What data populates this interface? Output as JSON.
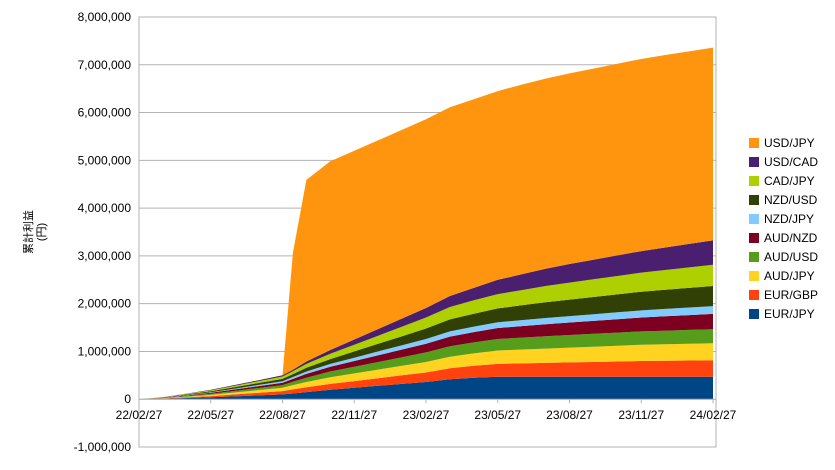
{
  "chart_data": {
    "type": "area",
    "stacked": true,
    "ylabel_lines": [
      "累計利益",
      "(円)"
    ],
    "ylim": [
      -1000000,
      8000000
    ],
    "yticks": [
      -1000000,
      0,
      1000000,
      2000000,
      3000000,
      4000000,
      5000000,
      6000000,
      7000000,
      8000000
    ],
    "ytick_labels": [
      "-1,000,000",
      "0",
      "1,000,000",
      "2,000,000",
      "3,000,000",
      "4,000,000",
      "5,000,000",
      "6,000,000",
      "7,000,000",
      "8,000,000"
    ],
    "xtick_labels": [
      "22/02/27",
      "22/05/27",
      "22/08/27",
      "22/11/27",
      "23/02/27",
      "23/05/27",
      "23/08/27",
      "23/11/27",
      "24/02/27"
    ],
    "grid": "horizontal",
    "legend_position": "right",
    "x": [
      "22/02/27",
      "22/03/27",
      "22/04/27",
      "22/05/27",
      "22/06/27",
      "22/07/27",
      "22/08/27",
      "22/09/10",
      "22/09/27",
      "22/10/27",
      "22/11/27",
      "22/12/27",
      "23/01/27",
      "23/02/27",
      "23/03/27",
      "23/04/27",
      "23/05/27",
      "23/06/27",
      "23/07/27",
      "23/08/27",
      "23/09/27",
      "23/10/27",
      "23/11/27",
      "23/12/27",
      "24/01/27",
      "24/02/27"
    ],
    "series": [
      {
        "name": "EUR/JPY",
        "color": "#004586",
        "values": [
          0,
          10000,
          25000,
          40000,
          60000,
          80000,
          100000,
          120000,
          150000,
          200000,
          240000,
          280000,
          320000,
          360000,
          420000,
          450000,
          470000,
          470000,
          470000,
          470000,
          470000,
          470000,
          470000,
          470000,
          470000,
          470000
        ]
      },
      {
        "name": "EUR/GBP",
        "color": "#ff420e",
        "values": [
          0,
          5000,
          15000,
          25000,
          40000,
          55000,
          70000,
          85000,
          100000,
          120000,
          140000,
          160000,
          180000,
          200000,
          230000,
          250000,
          270000,
          280000,
          290000,
          300000,
          310000,
          320000,
          330000,
          335000,
          340000,
          345000
        ]
      },
      {
        "name": "AUD/JPY",
        "color": "#ffd320",
        "values": [
          0,
          5000,
          15000,
          25000,
          40000,
          55000,
          70000,
          90000,
          110000,
          140000,
          160000,
          180000,
          200000,
          220000,
          240000,
          260000,
          280000,
          290000,
          300000,
          310000,
          320000,
          330000,
          340000,
          345000,
          350000,
          355000
        ]
      },
      {
        "name": "AUD/USD",
        "color": "#579d1c",
        "values": [
          0,
          5000,
          15000,
          25000,
          35000,
          45000,
          55000,
          70000,
          90000,
          120000,
          140000,
          160000,
          180000,
          200000,
          220000,
          230000,
          240000,
          250000,
          260000,
          265000,
          270000,
          275000,
          280000,
          285000,
          290000,
          295000
        ]
      },
      {
        "name": "AUD/NZD",
        "color": "#7e0021",
        "values": [
          0,
          5000,
          10000,
          20000,
          30000,
          40000,
          50000,
          60000,
          80000,
          100000,
          120000,
          140000,
          160000,
          180000,
          200000,
          215000,
          230000,
          240000,
          250000,
          260000,
          270000,
          280000,
          290000,
          300000,
          310000,
          320000
        ]
      },
      {
        "name": "NZD/JPY",
        "color": "#83caff",
        "values": [
          0,
          3000,
          8000,
          12000,
          18000,
          24000,
          30000,
          40000,
          50000,
          60000,
          70000,
          80000,
          90000,
          100000,
          110000,
          115000,
          120000,
          125000,
          130000,
          135000,
          140000,
          145000,
          150000,
          155000,
          160000,
          165000
        ]
      },
      {
        "name": "NZD/USD",
        "color": "#314004",
        "values": [
          0,
          5000,
          12000,
          20000,
          30000,
          40000,
          50000,
          60000,
          80000,
          100000,
          130000,
          160000,
          190000,
          220000,
          250000,
          270000,
          290000,
          310000,
          330000,
          345000,
          360000,
          375000,
          390000,
          400000,
          410000,
          420000
        ]
      },
      {
        "name": "CAD/JPY",
        "color": "#aecf00",
        "values": [
          0,
          5000,
          12000,
          20000,
          30000,
          40000,
          50000,
          60000,
          80000,
          110000,
          140000,
          170000,
          200000,
          230000,
          260000,
          280000,
          300000,
          320000,
          340000,
          355000,
          370000,
          385000,
          400000,
          415000,
          430000,
          445000
        ]
      },
      {
        "name": "USD/CAD",
        "color": "#4b1f6f",
        "values": [
          0,
          2000,
          6000,
          10000,
          15000,
          20000,
          25000,
          30000,
          50000,
          80000,
          110000,
          140000,
          170000,
          200000,
          230000,
          260000,
          300000,
          330000,
          360000,
          390000,
          410000,
          430000,
          450000,
          470000,
          490000,
          510000
        ]
      },
      {
        "name": "USD/JPY",
        "color": "#ff950e",
        "values": [
          0,
          0,
          0,
          0,
          0,
          0,
          0,
          2450000,
          3800000,
          3950000,
          3950000,
          3950000,
          3950000,
          3950000,
          3950000,
          3950000,
          3950000,
          3970000,
          3980000,
          3990000,
          4000000,
          4010000,
          4020000,
          4030000,
          4030000,
          4035000
        ]
      }
    ]
  }
}
